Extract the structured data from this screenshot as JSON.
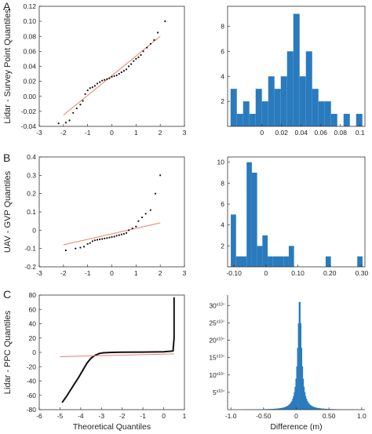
{
  "panel_letters": [
    "A",
    "B",
    "C"
  ],
  "chart_data": [
    {
      "type": "scatter",
      "panel": "A",
      "ylabel": "Lidar - Survey Point Quantiles",
      "xlabel": "",
      "xlim": [
        -3,
        3
      ],
      "ylim": [
        -0.04,
        0.12
      ],
      "xticks": [
        "-3",
        "-2",
        "-1",
        "0",
        "1",
        "2",
        "3"
      ],
      "yticks": [
        "-0.04",
        "-0.02",
        "0.00",
        "0.02",
        "0.04",
        "0.06",
        "0.08",
        "0.10",
        "0.12"
      ],
      "fit_line": {
        "x": [
          -2.0,
          2.0
        ],
        "y": [
          -0.025,
          0.08
        ]
      },
      "points_x": [
        -2.2,
        -1.9,
        -1.75,
        -1.6,
        -1.45,
        -1.3,
        -1.2,
        -1.1,
        -1.0,
        -0.9,
        -0.8,
        -0.7,
        -0.6,
        -0.5,
        -0.4,
        -0.3,
        -0.2,
        -0.1,
        0.0,
        0.1,
        0.2,
        0.3,
        0.4,
        0.5,
        0.6,
        0.7,
        0.8,
        0.9,
        1.0,
        1.1,
        1.2,
        1.3,
        1.45,
        1.6,
        1.75,
        1.9,
        2.2
      ],
      "points_y": [
        -0.036,
        -0.035,
        -0.032,
        -0.022,
        -0.016,
        -0.011,
        -0.006,
        0.003,
        0.008,
        0.011,
        0.012,
        0.014,
        0.017,
        0.019,
        0.021,
        0.022,
        0.023,
        0.024,
        0.026,
        0.027,
        0.028,
        0.03,
        0.032,
        0.034,
        0.036,
        0.04,
        0.043,
        0.047,
        0.05,
        0.052,
        0.055,
        0.06,
        0.065,
        0.07,
        0.075,
        0.085,
        0.1
      ]
    },
    {
      "type": "bar",
      "panel": "A",
      "xlim": [
        -0.035,
        0.105
      ],
      "ylim": [
        0,
        9.6
      ],
      "xticks": [
        "0",
        "0.02",
        "0.04",
        "0.06",
        "0.08",
        "0.1"
      ],
      "yticks": [
        "2",
        "4",
        "6",
        "8"
      ],
      "bin_start": -0.032,
      "bin_width": 0.0064,
      "values": [
        3,
        1,
        2,
        1,
        3,
        2,
        4,
        3,
        4,
        6,
        9,
        4,
        6,
        3,
        2,
        2,
        1,
        0,
        1,
        0,
        1
      ]
    },
    {
      "type": "scatter",
      "panel": "B",
      "ylabel": "UAV - GVP Quantiles",
      "xlabel": "",
      "xlim": [
        -3,
        3
      ],
      "ylim": [
        -0.2,
        0.4
      ],
      "xticks": [
        "-3",
        "-2",
        "-1",
        "0",
        "1",
        "2",
        "3"
      ],
      "yticks": [
        "-0.2",
        "-0.1",
        "0",
        "0.1",
        "0.2",
        "0.3",
        "0.4"
      ],
      "fit_line": {
        "x": [
          -2.0,
          2.0
        ],
        "y": [
          -0.08,
          0.04
        ]
      },
      "points_x": [
        -1.9,
        -1.5,
        -1.3,
        -1.15,
        -1.0,
        -0.9,
        -0.8,
        -0.7,
        -0.6,
        -0.5,
        -0.4,
        -0.3,
        -0.2,
        -0.1,
        0.0,
        0.1,
        0.2,
        0.3,
        0.4,
        0.5,
        0.6,
        0.7,
        0.85,
        1.0,
        1.1,
        1.25,
        1.4,
        1.6,
        1.8,
        2.0
      ],
      "points_y": [
        -0.11,
        -0.1,
        -0.095,
        -0.09,
        -0.075,
        -0.07,
        -0.06,
        -0.055,
        -0.052,
        -0.05,
        -0.048,
        -0.045,
        -0.043,
        -0.04,
        -0.037,
        -0.035,
        -0.03,
        -0.027,
        -0.023,
        -0.02,
        -0.015,
        0.0,
        0.01,
        0.02,
        0.05,
        0.07,
        0.09,
        0.11,
        0.2,
        0.3
      ]
    },
    {
      "type": "bar",
      "panel": "B",
      "xlim": [
        -0.12,
        0.31
      ],
      "ylim": [
        0,
        10.5
      ],
      "xticks": [
        "-0.10",
        "0",
        "0.10",
        "0.20",
        "0.30"
      ],
      "yticks": [
        "2",
        "4",
        "6",
        "8",
        "10"
      ],
      "bin_start": -0.11,
      "bin_width": 0.0165,
      "values": [
        5,
        1,
        1,
        10,
        9,
        2,
        3,
        1,
        1,
        1,
        1,
        2,
        0,
        0,
        0,
        0,
        0,
        0,
        1,
        0,
        0,
        0,
        0,
        0,
        1
      ]
    },
    {
      "type": "scatter",
      "panel": "C",
      "ylabel": "Lidar - PPC Quantiles",
      "xlabel": "Theoretical Quantiles",
      "xlim": [
        -6,
        1
      ],
      "ylim": [
        -80,
        80
      ],
      "xticks": [
        "-6",
        "-5",
        "-4",
        "-3",
        "-2",
        "-1",
        "0",
        "1"
      ],
      "yticks": [
        "-80",
        "-60",
        "-40",
        "-20",
        "0",
        "20",
        "40",
        "60",
        "80"
      ],
      "fit_line": {
        "x": [
          -5.0,
          0.5
        ],
        "y": [
          -6,
          -2
        ]
      },
      "curve_x": [
        -4.9,
        -4.7,
        -4.5,
        -4.3,
        -4.1,
        -3.9,
        -3.7,
        -3.5,
        -3.3,
        -3.1,
        -2.9,
        -2.5,
        -2.0,
        -1.0,
        0.0,
        0.45,
        0.5,
        0.5,
        0.5
      ],
      "curve_y": [
        -70,
        -62,
        -53,
        -44,
        -35,
        -25,
        -15,
        -8,
        -4,
        -1.5,
        -0.5,
        0,
        0.2,
        0.4,
        0.8,
        2,
        20,
        50,
        77
      ]
    },
    {
      "type": "area",
      "panel": "C",
      "xlabel": "Difference (m)",
      "xlim": [
        -1.05,
        1.05
      ],
      "ylim": [
        0,
        33
      ],
      "xticks": [
        "-1.0",
        "-0.50",
        "0",
        "0.50",
        "1.0"
      ],
      "yticks": [
        "5",
        "10",
        "15",
        "20",
        "25",
        "30"
      ],
      "ytick_suffix": "x10⁴",
      "peak_center": 0.05,
      "peak_height": 32,
      "peak_width": 0.035
    }
  ]
}
